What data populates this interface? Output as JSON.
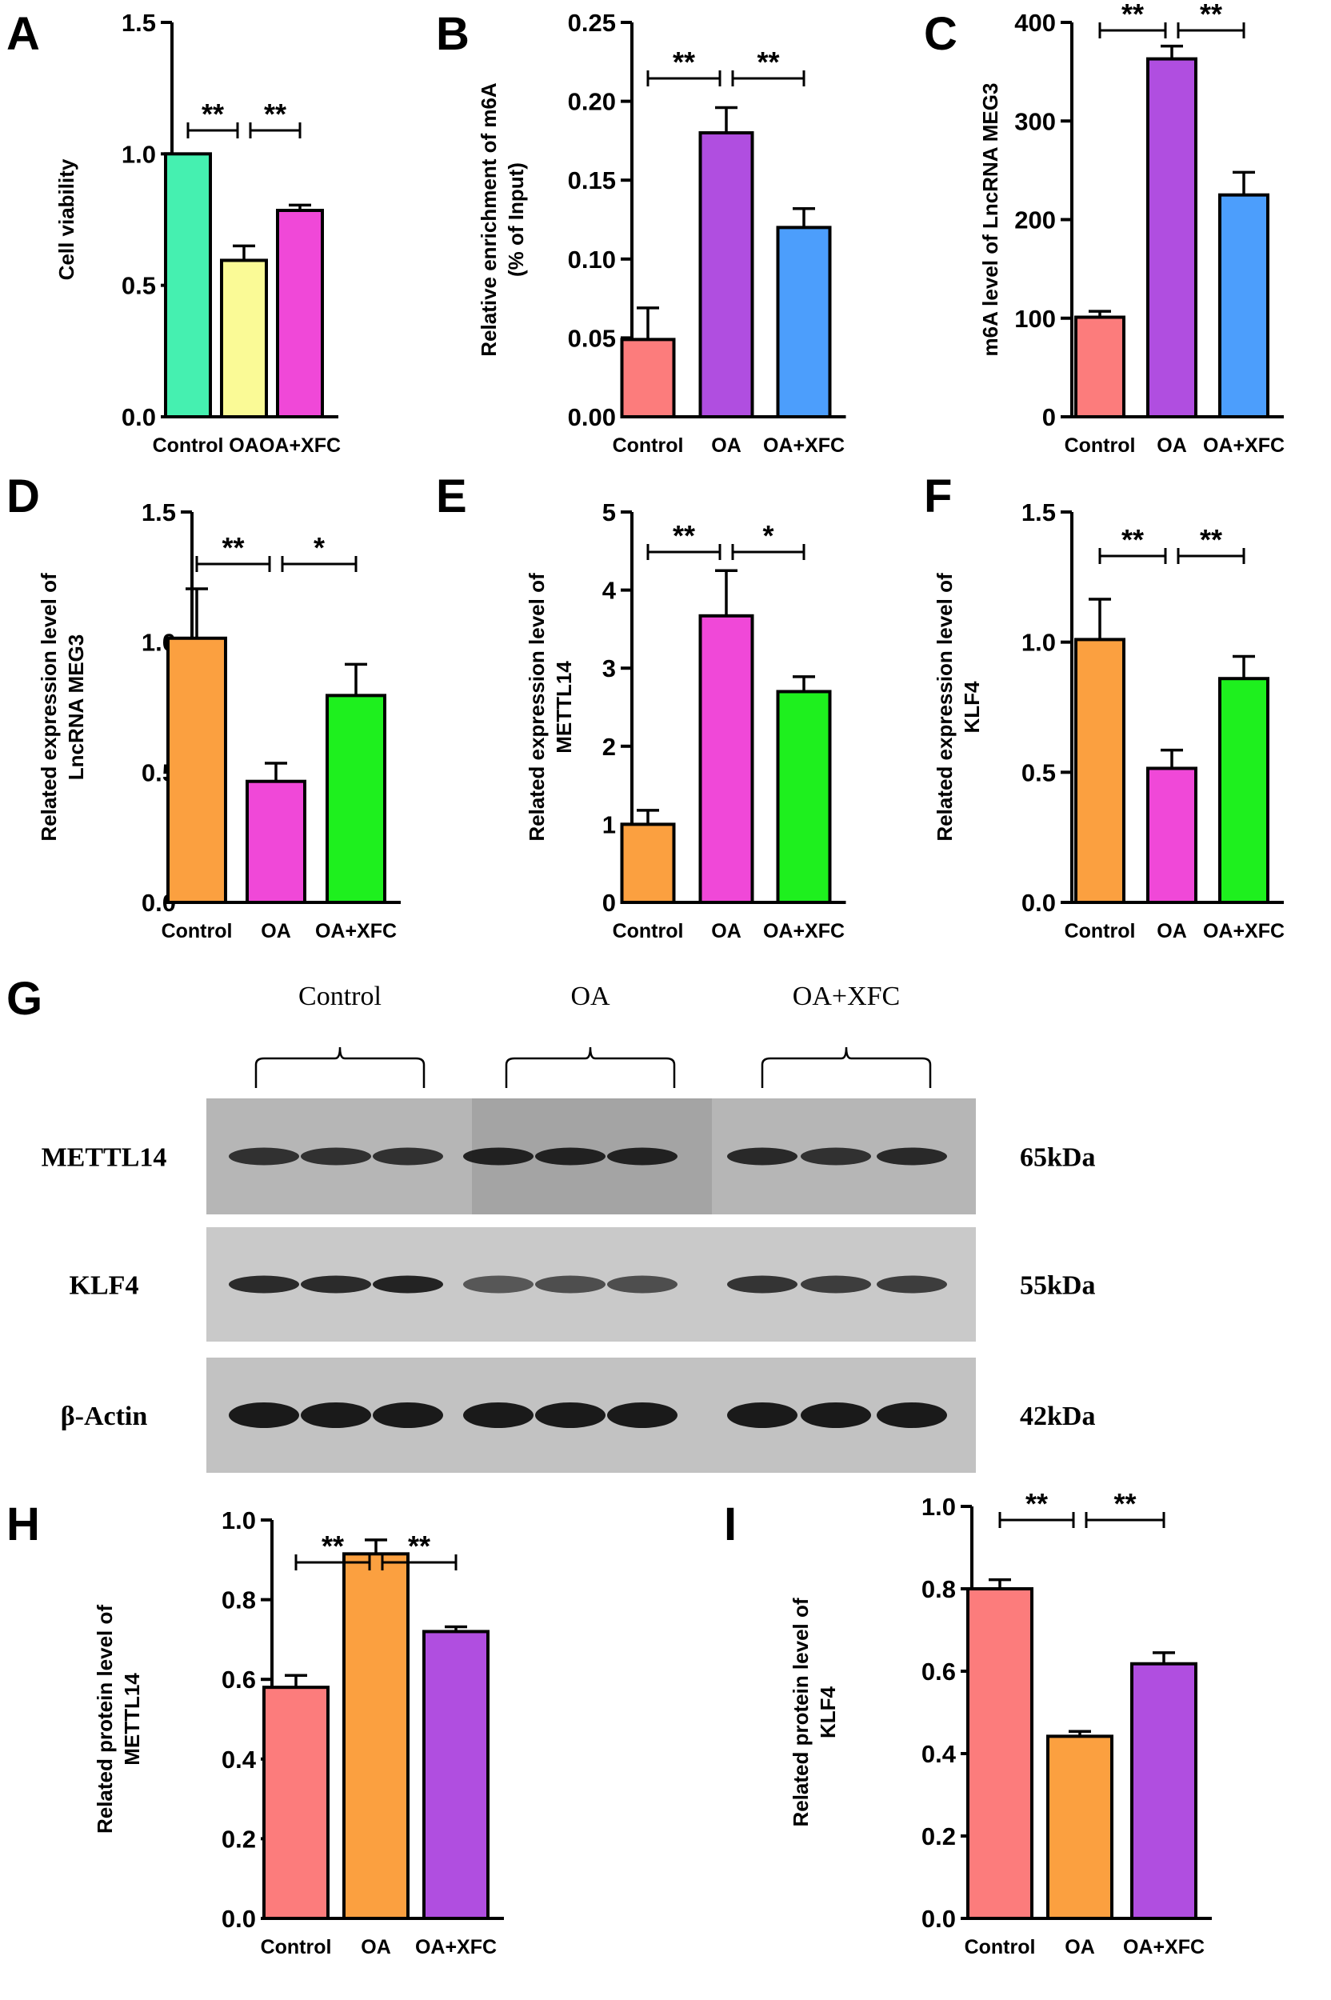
{
  "colors": {
    "teal": "#45f0b0",
    "yellow": "#fafa96",
    "magenta": "#f048d8",
    "salmon": "#fc7c7c",
    "purple": "#b04ee0",
    "blue": "#4c9efc",
    "orange": "#fba040",
    "green": "#1ef01e",
    "pink": "#f052dc"
  },
  "chart_data": [
    {
      "id": "A",
      "type": "bar",
      "letter": "A",
      "ylabel": "Cell viability",
      "categories": [
        "Control",
        "OA",
        "OA+XFC"
      ],
      "values": [
        1.0,
        0.595,
        0.785
      ],
      "errors": [
        0,
        0.055,
        0.02
      ],
      "ylim": [
        0,
        1.5
      ],
      "yticks": [
        "0.0",
        "0.5",
        "1.0",
        "1.5"
      ],
      "colors": [
        "teal",
        "yellow",
        "magenta"
      ],
      "significance": [
        "**",
        "**"
      ]
    },
    {
      "id": "B",
      "type": "bar",
      "letter": "B",
      "ylabel": "Relative enrichment of m6A",
      "ylabel2": "(% of Input)",
      "categories": [
        "Control",
        "OA",
        "OA+XFC"
      ],
      "values": [
        0.049,
        0.18,
        0.12
      ],
      "errors": [
        0.02,
        0.016,
        0.012
      ],
      "ylim": [
        0,
        0.25
      ],
      "yticks": [
        "0.00",
        "0.05",
        "0.10",
        "0.15",
        "0.20",
        "0.25"
      ],
      "colors": [
        "salmon",
        "purple",
        "blue"
      ],
      "significance": [
        "**",
        "**"
      ]
    },
    {
      "id": "C",
      "type": "bar",
      "letter": "C",
      "ylabel": "m6A level of LncRNA MEG3",
      "categories": [
        "Control",
        "OA",
        "OA+XFC"
      ],
      "values": [
        101,
        363,
        225
      ],
      "errors": [
        6,
        13,
        23
      ],
      "ylim": [
        0,
        400
      ],
      "yticks": [
        "0",
        "100",
        "200",
        "300",
        "400"
      ],
      "colors": [
        "salmon",
        "purple",
        "blue"
      ],
      "significance": [
        "**",
        "**"
      ]
    },
    {
      "id": "D",
      "type": "bar",
      "letter": "D",
      "ylabel": "Related expression level of",
      "ylabel2": "LncRNA MEG3",
      "categories": [
        "Control",
        "OA",
        "OA+XFC"
      ],
      "values": [
        1.015,
        0.465,
        0.795
      ],
      "errors": [
        0.19,
        0.07,
        0.12
      ],
      "ylim": [
        0,
        1.5
      ],
      "yticks": [
        "0.0",
        "0.5",
        "1.0",
        "1.5"
      ],
      "colors": [
        "orange",
        "magenta",
        "green"
      ],
      "significance": [
        "**",
        "*"
      ]
    },
    {
      "id": "E",
      "type": "bar",
      "letter": "E",
      "ylabel": "Related expression level of",
      "ylabel2": "METTL14",
      "categories": [
        "Control",
        "OA",
        "OA+XFC"
      ],
      "values": [
        1.0,
        3.67,
        2.7
      ],
      "errors": [
        0.18,
        0.58,
        0.19
      ],
      "ylim": [
        0,
        5
      ],
      "yticks": [
        "0",
        "1",
        "2",
        "3",
        "4",
        "5"
      ],
      "colors": [
        "orange",
        "magenta",
        "green"
      ],
      "significance": [
        "**",
        "*"
      ]
    },
    {
      "id": "F",
      "type": "bar",
      "letter": "F",
      "ylabel": "Related expression level of",
      "ylabel2": "KLF4",
      "categories": [
        "Control",
        "OA",
        "OA+XFC"
      ],
      "values": [
        1.01,
        0.515,
        0.86
      ],
      "errors": [
        0.155,
        0.07,
        0.085
      ],
      "ylim": [
        0,
        1.5
      ],
      "yticks": [
        "0.0",
        "0.5",
        "1.0",
        "1.5"
      ],
      "colors": [
        "orange",
        "magenta",
        "green"
      ],
      "significance": [
        "**",
        "**"
      ]
    },
    {
      "id": "H",
      "type": "bar",
      "letter": "H",
      "ylabel": "Related protein level of",
      "ylabel2": "METTL14",
      "categories": [
        "Control",
        "OA",
        "OA+XFC"
      ],
      "values": [
        0.58,
        0.915,
        0.72
      ],
      "errors": [
        0.03,
        0.035,
        0.012
      ],
      "ylim": [
        0,
        1.0
      ],
      "yticks": [
        "0.0",
        "0.2",
        "0.4",
        "0.6",
        "0.8",
        "1.0"
      ],
      "colors": [
        "salmon",
        "orange",
        "purple"
      ],
      "significance": [
        "**",
        "**"
      ]
    },
    {
      "id": "I",
      "type": "bar",
      "letter": "I",
      "ylabel": "Related protein level of",
      "ylabel2": "KLF4",
      "categories": [
        "Control",
        "OA",
        "OA+XFC"
      ],
      "values": [
        0.8,
        0.442,
        0.618
      ],
      "errors": [
        0.022,
        0.012,
        0.027
      ],
      "ylim": [
        0,
        1.0
      ],
      "yticks": [
        "0.0",
        "0.2",
        "0.4",
        "0.6",
        "0.8",
        "1.0"
      ],
      "colors": [
        "salmon",
        "orange",
        "purple"
      ],
      "significance": [
        "**",
        "**"
      ]
    }
  ],
  "blot": {
    "letter": "G",
    "groups": [
      "Control",
      "OA",
      "OA+XFC"
    ],
    "rows": [
      {
        "label": "METTL14",
        "size": "65kDa"
      },
      {
        "label": "KLF4",
        "size": "55kDa"
      },
      {
        "label": "β-Actin",
        "size": "42kDa"
      }
    ]
  }
}
